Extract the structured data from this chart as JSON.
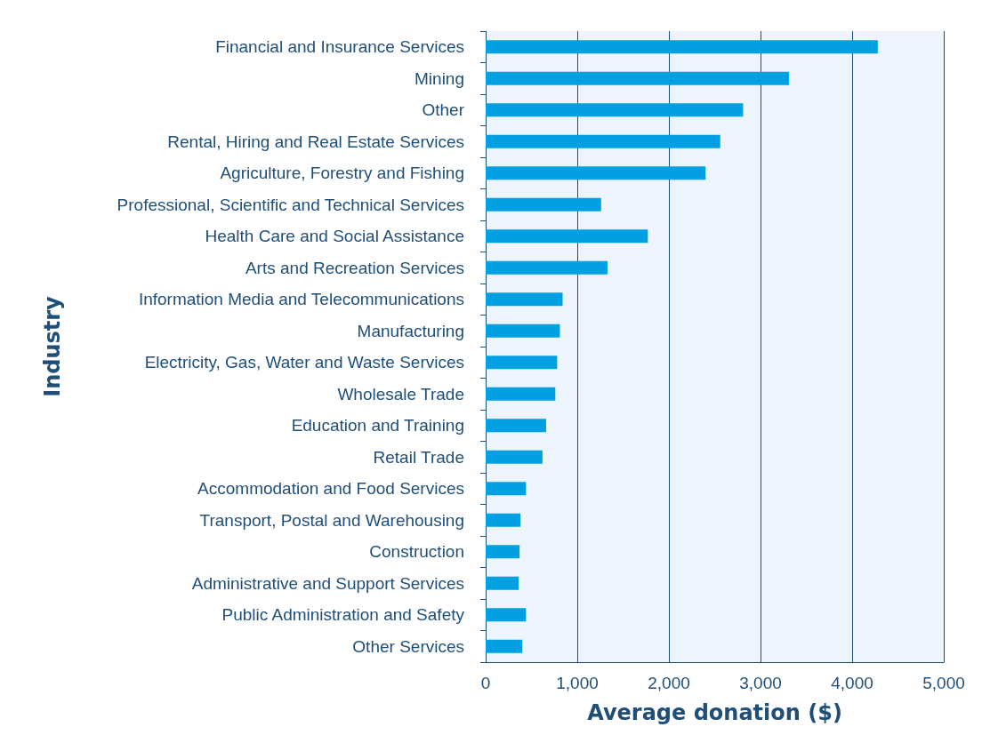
{
  "chart_data": {
    "type": "bar",
    "orientation": "horizontal",
    "xlabel": "Average donation ($)",
    "ylabel": "Industry",
    "categories": [
      "Financial and Insurance Services",
      "Mining",
      "Other",
      "Rental, Hiring and Real Estate Services",
      "Agriculture, Forestry and Fishing",
      "Professional, Scientific and Technical Services",
      "Health Care and Social Assistance",
      "Arts and Recreation Services",
      "Information Media and Telecommunications",
      "Manufacturing",
      "Electricity, Gas, Water and Waste Services",
      "Wholesale Trade",
      "Education and Training",
      "Retail Trade",
      "Accommodation and Food Services",
      "Transport, Postal and Warehousing",
      "Construction",
      "Administrative and Support Services",
      "Public Administration and Safety",
      "Other Services"
    ],
    "values": [
      4280,
      3310,
      2810,
      2560,
      2400,
      1260,
      1770,
      1330,
      840,
      810,
      780,
      760,
      660,
      620,
      440,
      380,
      370,
      360,
      440,
      400
    ],
    "color": "#00a0e3",
    "xlim": [
      0,
      5000
    ],
    "xticks": [
      {
        "value": 0,
        "label": "0"
      },
      {
        "value": 1000,
        "label": "1,000"
      },
      {
        "value": 2000,
        "label": "2,000"
      },
      {
        "value": 3000,
        "label": "3,000"
      },
      {
        "value": 4000,
        "label": "4,000"
      },
      {
        "value": 5000,
        "label": "5,000"
      }
    ],
    "grid": "x"
  }
}
